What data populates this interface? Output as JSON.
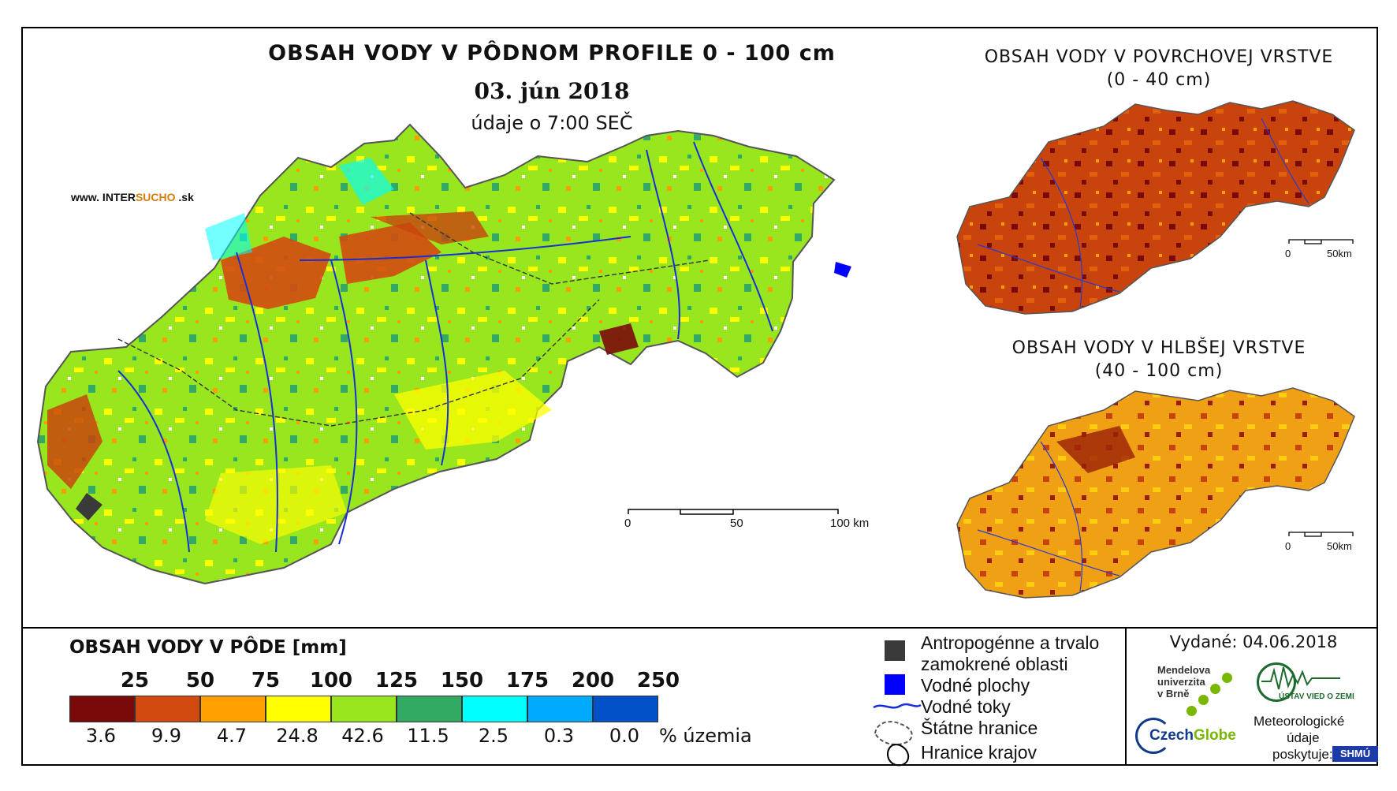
{
  "header": {
    "title": "OBSAH VODY V PÔDNOM PROFILE 0 - 100 cm",
    "date": "03. jún 2018",
    "subtitle": "údaje o 7:00 SEČ",
    "website_prefix": "www. INTER",
    "website_highlight": "SUCHO",
    "website_suffix": " .sk"
  },
  "main_scale": {
    "l0": "0",
    "l50": "50",
    "l100": "100 km"
  },
  "insets": [
    {
      "title_line1": "OBSAH VODY V POVRCHOVEJ VRSTVE",
      "title_line2": "(0 - 40 cm)",
      "scale_l0": "0",
      "scale_l50": "50km",
      "dominant_color": "#c8440c"
    },
    {
      "title_line1": "OBSAH VODY V HLBŠEJ VRSTVE",
      "title_line2": "(40 - 100 cm)",
      "scale_l0": "0",
      "scale_l50": "50km",
      "dominant_color": "#f0a015"
    }
  ],
  "legend": {
    "title": "OBSAH VODY V PÔDE [mm]",
    "thresholds": [
      "25",
      "50",
      "75",
      "100",
      "125",
      "150",
      "175",
      "200",
      "250"
    ],
    "classes": [
      {
        "color": "#7a0a0a",
        "pct": "3.6"
      },
      {
        "color": "#d24a10",
        "pct": "9.9"
      },
      {
        "color": "#ffa000",
        "pct": "4.7"
      },
      {
        "color": "#ffff00",
        "pct": "24.8"
      },
      {
        "color": "#98e61e",
        "pct": "42.6"
      },
      {
        "color": "#32aa64",
        "pct": "11.5"
      },
      {
        "color": "#00ffff",
        "pct": "2.5"
      },
      {
        "color": "#00aaff",
        "pct": "0.3"
      },
      {
        "color": "#0050c8",
        "pct": "0.0"
      }
    ],
    "pct_unit": "% územia"
  },
  "symbols": {
    "anthropogenic_line1": "Antropogénne a trvalo",
    "anthropogenic_line2": "zamokrené oblasti",
    "water_bodies": "Vodné plochy",
    "rivers": "Vodné toky",
    "state_border": "Štátne hranice",
    "region_border": "Hranice krajov",
    "anthropogenic_color": "#3a3a3a",
    "water_color": "#0000ff"
  },
  "issued": "Vydané: 04.06.2018",
  "logos": {
    "mendel_1": "Mendelova",
    "mendel_2": "univerzita",
    "mendel_3": "v Brně",
    "czech": "Czech",
    "globe": "Globe",
    "uvz": "ÚSTAV VIED O ZEMI",
    "meteo_1": "Meteorologické",
    "meteo_2": "údaje",
    "meteo_3": "poskytuje:",
    "shmu": "SHMÚ"
  }
}
